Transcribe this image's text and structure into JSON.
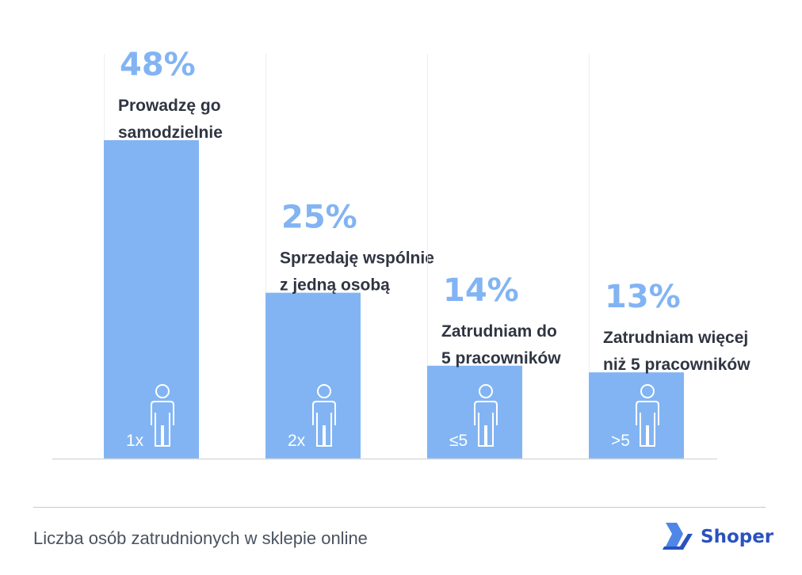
{
  "chart_data": {
    "type": "bar",
    "title": "",
    "xlabel": "",
    "ylabel": "",
    "ylim": [
      0,
      48
    ],
    "categories": [
      "1x",
      "2x",
      "≤5",
      ">5"
    ],
    "values": [
      48,
      25,
      14,
      13
    ],
    "value_labels": [
      "48%",
      "25%",
      "14%",
      "13%"
    ],
    "descriptions": [
      [
        "Prowadzę go",
        "samodzielnie"
      ],
      [
        "Sprzedaję wspólnie",
        "z jedną osobą"
      ],
      [
        "Zatrudniam do",
        "5 pracowników"
      ],
      [
        "Zatrudniam więcej",
        "niż 5 pracowników"
      ]
    ],
    "icon": "person-icon",
    "grid": false,
    "legend": "none"
  },
  "colors": {
    "bar": "#82b4f3",
    "value_label": "#82b4f3",
    "description": "#2f3542",
    "baseline": "#d9d9d9",
    "guide": "#ececec",
    "logo": "#2a52be"
  },
  "footer": {
    "caption": "Liczba osób zatrudnionych w sklepie online",
    "brand": "Shoper"
  }
}
